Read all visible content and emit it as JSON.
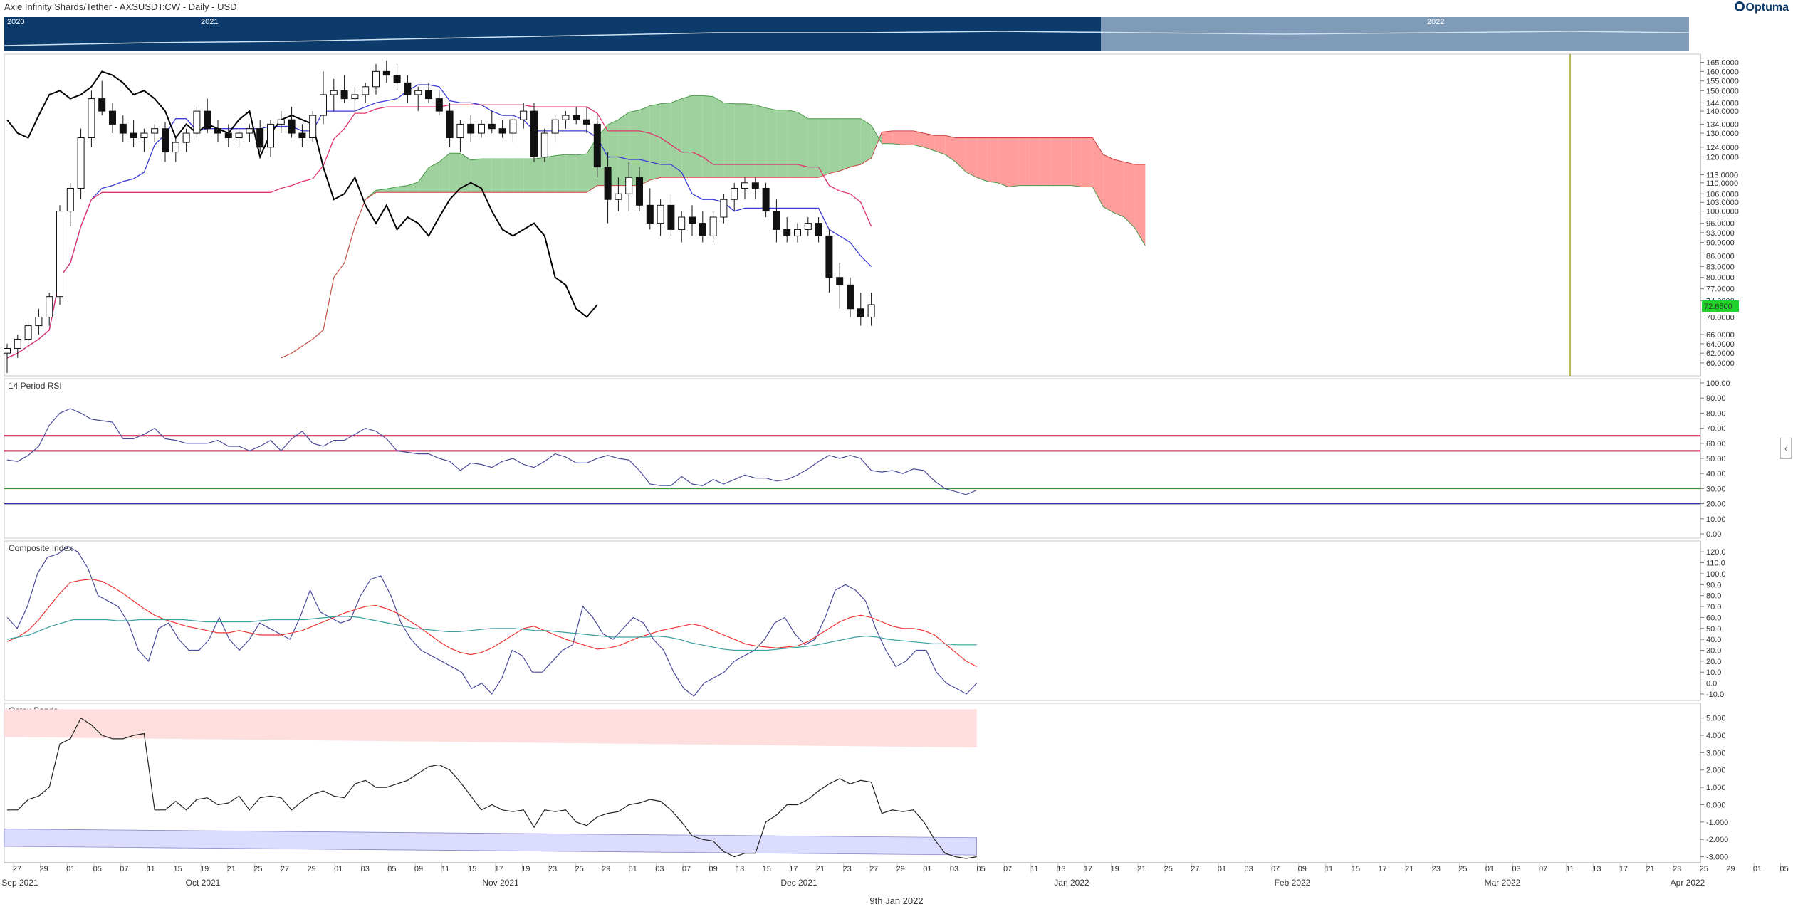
{
  "header": {
    "title": "Axie Infinity Shards/Tether - AXSUSDT:CW - Daily - USD",
    "brand": "Optuma"
  },
  "navigator": {
    "labels": [
      "2020",
      "2021",
      "2022"
    ]
  },
  "footer": {
    "date": "9th Jan 2022"
  },
  "colors": {
    "bull_cloud": "#9fd19f",
    "bear_cloud": "#ff9c9c",
    "tenkan": "#3b3bd6",
    "kijun": "#e0336b",
    "lagging": "#000000",
    "price_tag": "#22d22b",
    "rsi_line": "#4b4b9b",
    "rsi_upper": "#cc1144",
    "rsi_lower_green": "#3a9a3a",
    "composite": "#4b4b9b",
    "comp_fast": "#ee3333",
    "comp_slow": "#3aa0a0",
    "optex_upper": "#ffdede",
    "optex_lower": "#dcdcff"
  },
  "chart_data": [
    {
      "id": "price",
      "type": "candlestick",
      "title": "",
      "last_price_label": "72.6500",
      "y_ticks": [
        "165.0000",
        "160.0000",
        "155.0000",
        "150.0000",
        "144.0000",
        "140.0000",
        "134.0000",
        "130.0000",
        "124.0000",
        "120.0000",
        "113.0000",
        "110.0000",
        "106.0000",
        "103.0000",
        "100.0000",
        "96.0000",
        "93.0000",
        "90.0000",
        "86.0000",
        "83.0000",
        "80.0000",
        "77.0000",
        "74.0000",
        "70.0000",
        "66.0000",
        "64.0000",
        "62.0000",
        "60.0000"
      ],
      "ylim": [
        58,
        168
      ],
      "x_categories": [
        "27",
        "29",
        "01",
        "05",
        "07",
        "11",
        "15",
        "19",
        "21",
        "25",
        "27",
        "29",
        "01",
        "03",
        "05",
        "09",
        "11",
        "15",
        "17",
        "19",
        "23",
        "25",
        "29",
        "01",
        "03",
        "07",
        "09",
        "13",
        "15",
        "17",
        "21",
        "23",
        "27",
        "29",
        "01",
        "03",
        "05",
        "07",
        "11",
        "13",
        "17",
        "19",
        "21",
        "25",
        "27",
        "01",
        "03",
        "07",
        "09",
        "11",
        "15",
        "17",
        "21",
        "23",
        "25",
        "01",
        "03",
        "07",
        "11",
        "13",
        "17",
        "21",
        "23",
        "25",
        "29",
        "01",
        "05",
        "07",
        "11",
        "13"
      ],
      "month_labels": [
        "Sep 2021",
        "Oct 2021",
        "Nov 2021",
        "Dec 2021",
        "Jan 2022",
        "Feb 2022",
        "Mar 2022",
        "Apr 2022"
      ],
      "candles_ohlc": [
        [
          62,
          64,
          58,
          63
        ],
        [
          63,
          66,
          61,
          65
        ],
        [
          65,
          69,
          63,
          68
        ],
        [
          68,
          72,
          66,
          70
        ],
        [
          70,
          76,
          68,
          75
        ],
        [
          75,
          102,
          73,
          100
        ],
        [
          100,
          110,
          95,
          108
        ],
        [
          108,
          132,
          104,
          128
        ],
        [
          128,
          150,
          124,
          146
        ],
        [
          146,
          155,
          138,
          140
        ],
        [
          140,
          144,
          130,
          134
        ],
        [
          134,
          138,
          126,
          130
        ],
        [
          130,
          136,
          124,
          128
        ],
        [
          128,
          132,
          122,
          130
        ],
        [
          130,
          134,
          126,
          132
        ],
        [
          132,
          135,
          118,
          122
        ],
        [
          122,
          128,
          118,
          126
        ],
        [
          126,
          132,
          122,
          130
        ],
        [
          130,
          142,
          128,
          140
        ],
        [
          140,
          146,
          130,
          132
        ],
        [
          132,
          136,
          126,
          130
        ],
        [
          130,
          134,
          124,
          128
        ],
        [
          128,
          132,
          124,
          130
        ],
        [
          130,
          134,
          126,
          132
        ],
        [
          132,
          136,
          122,
          124
        ],
        [
          124,
          136,
          120,
          134
        ],
        [
          134,
          140,
          130,
          136
        ],
        [
          136,
          142,
          128,
          130
        ],
        [
          130,
          134,
          124,
          128
        ],
        [
          128,
          140,
          126,
          138
        ],
        [
          138,
          160,
          134,
          148
        ],
        [
          148,
          156,
          140,
          150
        ],
        [
          150,
          158,
          144,
          146
        ],
        [
          146,
          152,
          140,
          148
        ],
        [
          148,
          154,
          144,
          152
        ],
        [
          152,
          164,
          148,
          160
        ],
        [
          160,
          166,
          154,
          158
        ],
        [
          158,
          164,
          150,
          154
        ],
        [
          154,
          158,
          144,
          148
        ],
        [
          148,
          152,
          140,
          150
        ],
        [
          150,
          154,
          144,
          146
        ],
        [
          146,
          150,
          138,
          140
        ],
        [
          140,
          144,
          124,
          128
        ],
        [
          128,
          136,
          122,
          134
        ],
        [
          134,
          138,
          126,
          130
        ],
        [
          130,
          136,
          128,
          134
        ],
        [
          134,
          140,
          130,
          132
        ],
        [
          132,
          136,
          128,
          130
        ],
        [
          130,
          138,
          126,
          136
        ],
        [
          136,
          144,
          132,
          140
        ],
        [
          140,
          144,
          118,
          120
        ],
        [
          120,
          132,
          118,
          130
        ],
        [
          130,
          138,
          126,
          136
        ],
        [
          136,
          140,
          132,
          138
        ],
        [
          138,
          142,
          134,
          136
        ],
        [
          136,
          142,
          130,
          134
        ],
        [
          134,
          138,
          112,
          116
        ],
        [
          116,
          122,
          96,
          104
        ],
        [
          104,
          112,
          100,
          106
        ],
        [
          106,
          118,
          100,
          112
        ],
        [
          112,
          116,
          100,
          102
        ],
        [
          102,
          108,
          94,
          96
        ],
        [
          96,
          104,
          92,
          102
        ],
        [
          102,
          106,
          92,
          94
        ],
        [
          94,
          100,
          90,
          98
        ],
        [
          98,
          102,
          92,
          96
        ],
        [
          96,
          100,
          90,
          92
        ],
        [
          92,
          100,
          90,
          98
        ],
        [
          98,
          106,
          96,
          104
        ],
        [
          104,
          110,
          100,
          108
        ],
        [
          108,
          112,
          104,
          110
        ],
        [
          110,
          112,
          104,
          108
        ],
        [
          108,
          110,
          98,
          100
        ],
        [
          100,
          104,
          90,
          94
        ],
        [
          94,
          98,
          90,
          92
        ],
        [
          92,
          96,
          90,
          94
        ],
        [
          94,
          98,
          92,
          96
        ],
        [
          96,
          98,
          90,
          92
        ],
        [
          92,
          94,
          76,
          80
        ],
        [
          80,
          84,
          72,
          78
        ],
        [
          78,
          80,
          70,
          72
        ],
        [
          72,
          76,
          68,
          70
        ],
        [
          70,
          76,
          68,
          73
        ]
      ]
    },
    {
      "id": "rsi",
      "type": "line",
      "title": "14 Period RSI",
      "y_ticks": [
        "100.00",
        "90.00",
        "80.00",
        "70.00",
        "60.00",
        "50.00",
        "40.00",
        "30.00",
        "20.00",
        "10.00",
        "0.00"
      ],
      "ylim": [
        0,
        100
      ],
      "levels": [
        65,
        55,
        30,
        20
      ],
      "values": [
        49,
        48,
        52,
        58,
        72,
        80,
        83,
        80,
        76,
        75,
        74,
        63,
        63,
        66,
        70,
        63,
        62,
        60,
        60,
        60,
        62,
        58,
        58,
        55,
        58,
        62,
        55,
        63,
        68,
        60,
        58,
        62,
        62,
        66,
        70,
        68,
        63,
        55,
        54,
        53,
        53,
        50,
        48,
        42,
        47,
        46,
        44,
        48,
        50,
        46,
        44,
        48,
        53,
        51,
        47,
        47,
        50,
        52,
        50,
        49,
        42,
        33,
        32,
        32,
        38,
        33,
        32,
        36,
        33,
        36,
        39,
        37,
        37,
        35,
        36,
        39,
        43,
        48,
        52,
        50,
        52,
        50,
        42,
        41,
        42,
        40,
        43,
        42,
        35,
        30,
        28,
        26,
        29
      ]
    },
    {
      "id": "composite",
      "type": "line",
      "title": "Composite Index",
      "y_ticks": [
        "120.0",
        "110.0",
        "100.0",
        "90.0",
        "80.0",
        "70.0",
        "60.0",
        "50.0",
        "40.0",
        "30.0",
        "20.0",
        "10.0",
        "0.0",
        "-10.0"
      ],
      "ylim": [
        -12,
        126
      ],
      "series": [
        {
          "name": "",
          "values": [
            60,
            50,
            70,
            100,
            115,
            118,
            125,
            120,
            105,
            80,
            75,
            70,
            55,
            30,
            20,
            50,
            55,
            40,
            30,
            30,
            40,
            60,
            40,
            30,
            40,
            55,
            50,
            45,
            40,
            60,
            85,
            65,
            60,
            55,
            58,
            80,
            95,
            98,
            80,
            55,
            40,
            30,
            25,
            20,
            15,
            10,
            -5,
            0,
            -10,
            5,
            30,
            25,
            10,
            10,
            20,
            30,
            35,
            70,
            60,
            45,
            40,
            50,
            60,
            55,
            40,
            30,
            10,
            -5,
            -12,
            0,
            5,
            10,
            20,
            25,
            30,
            40,
            55,
            60,
            45,
            35,
            40,
            60,
            85,
            90,
            85,
            75,
            50,
            30,
            15,
            20,
            30,
            30,
            10,
            0,
            -5,
            -10,
            0
          ]
        },
        {
          "name": "",
          "values": [
            38,
            42,
            48,
            58,
            70,
            82,
            92,
            94,
            95,
            93,
            88,
            82,
            75,
            68,
            62,
            58,
            55,
            52,
            50,
            48,
            46,
            46,
            48,
            46,
            44,
            44,
            44,
            46,
            48,
            52,
            56,
            60,
            64,
            67,
            70,
            71,
            68,
            64,
            58,
            52,
            45,
            38,
            32,
            28,
            26,
            28,
            32,
            38,
            44,
            50,
            52,
            48,
            44,
            40,
            37,
            34,
            31,
            32,
            34,
            38,
            42,
            45,
            48,
            50,
            52,
            54,
            52,
            48,
            44,
            40,
            36,
            34,
            33,
            32,
            33,
            34,
            38,
            44,
            50,
            56,
            60,
            62,
            60,
            56,
            52,
            50,
            50,
            48,
            44,
            36,
            28,
            20,
            15
          ]
        },
        {
          "name": "",
          "values": [
            40,
            42,
            44,
            48,
            52,
            55,
            58,
            58,
            58,
            58,
            57,
            57,
            58,
            58,
            58,
            58,
            58,
            57,
            56,
            56,
            56,
            56,
            56,
            57,
            58,
            58,
            58,
            58,
            59,
            60,
            61,
            61,
            60,
            58,
            56,
            54,
            52,
            50,
            49,
            48,
            47,
            47,
            48,
            49,
            50,
            50,
            50,
            49,
            48,
            48,
            47,
            46,
            45,
            44,
            43,
            42,
            42,
            42,
            42,
            43,
            42,
            40,
            37,
            35,
            33,
            31,
            30,
            30,
            30,
            30,
            31,
            32,
            33,
            34,
            36,
            38,
            40,
            42,
            43,
            42,
            40,
            39,
            38,
            37,
            36,
            36,
            35,
            35,
            35
          ]
        }
      ]
    },
    {
      "id": "optex",
      "type": "line",
      "title": "Optex Bands",
      "y_ticks": [
        "5.000",
        "4.000",
        "3.000",
        "2.000",
        "1.000",
        "0.000",
        "-1.000",
        "-2.000",
        "-3.000"
      ],
      "ylim": [
        -3.1,
        5.6
      ],
      "upper_band": [
        [
          5.5,
          3.9
        ],
        [
          5.5,
          3.3
        ]
      ],
      "lower_band": [
        [
          -1.4,
          -2.4
        ],
        [
          -1.9,
          -2.9
        ]
      ],
      "values": [
        -0.3,
        -0.3,
        0.3,
        0.5,
        1.0,
        3.5,
        3.8,
        5.0,
        4.6,
        4.0,
        3.8,
        3.8,
        4.0,
        4.1,
        -0.3,
        -0.3,
        0.2,
        -0.3,
        0.3,
        0.4,
        0.0,
        0.1,
        0.5,
        -0.3,
        0.4,
        0.5,
        0.4,
        -0.3,
        0.2,
        0.6,
        0.8,
        0.5,
        0.4,
        1.2,
        1.4,
        1.0,
        1.0,
        1.2,
        1.4,
        1.8,
        2.2,
        2.3,
        2.0,
        1.3,
        0.5,
        -0.3,
        0.0,
        -0.3,
        -0.4,
        -0.3,
        -1.3,
        -0.3,
        -0.4,
        -0.3,
        -1.0,
        -1.2,
        -0.7,
        -0.5,
        -0.4,
        0.0,
        0.1,
        0.3,
        0.2,
        -0.3,
        -1.0,
        -1.8,
        -2.0,
        -2.1,
        -2.7,
        -3.0,
        -2.8,
        -2.8,
        -1.0,
        -0.6,
        0.0,
        0.0,
        0.3,
        0.8,
        1.2,
        1.5,
        1.2,
        1.4,
        1.3,
        -0.5,
        -0.3,
        -0.4,
        -0.3,
        -1.0,
        -2.0,
        -2.8,
        -3.0,
        -3.1,
        -3.0
      ]
    }
  ]
}
